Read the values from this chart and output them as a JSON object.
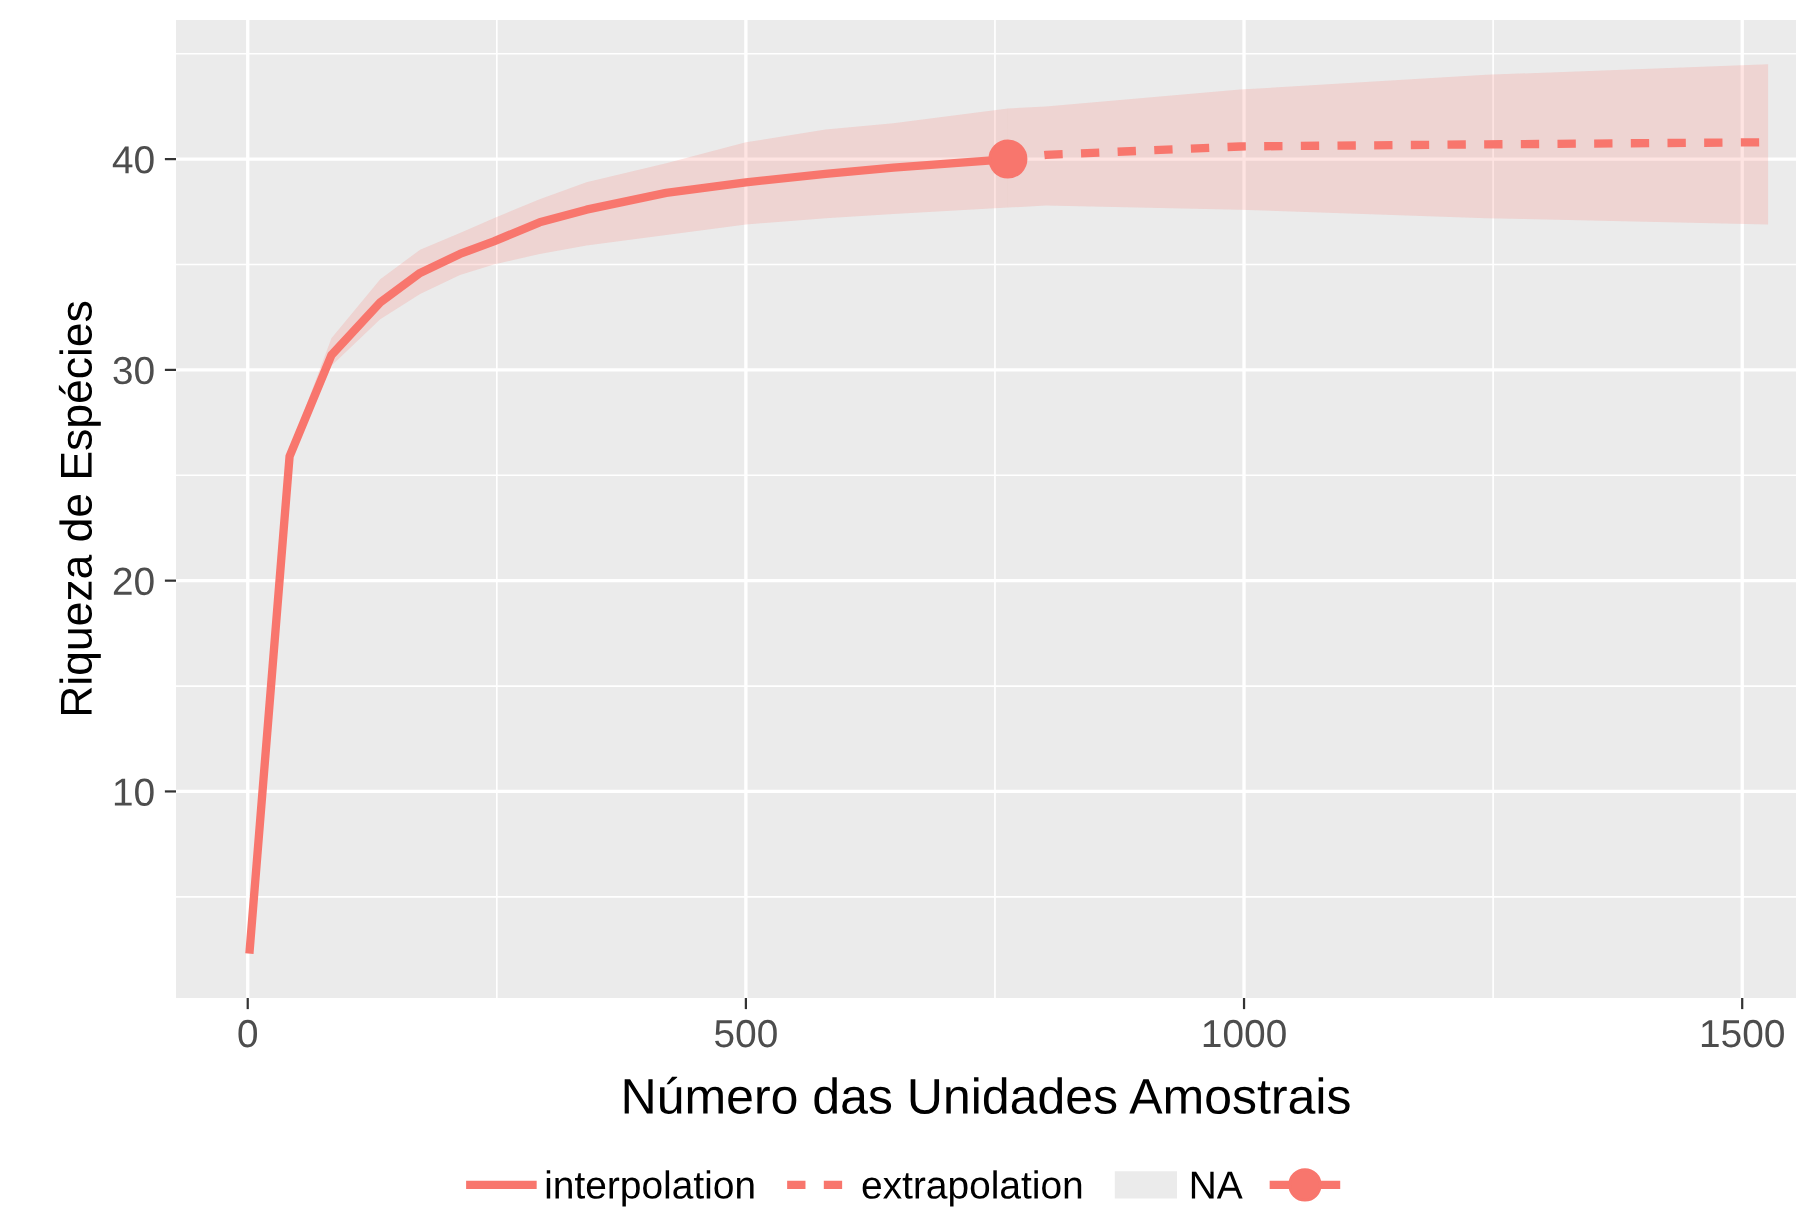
{
  "chart_data": {
    "type": "line",
    "xlabel": "Número das Unidades Amostrais",
    "ylabel": "Riqueza de Espécies",
    "xlim": [
      -72,
      1554
    ],
    "ylim": [
      0.2,
      46.6
    ],
    "xticks": [
      0,
      500,
      1000,
      1500
    ],
    "yticks": [
      10,
      20,
      30,
      40
    ],
    "grid": true,
    "legend": "bottom",
    "annotations": [
      "NA"
    ],
    "series": [
      {
        "name": "interpolation",
        "line_style": "solid",
        "color": "#f8766d",
        "x": [
          2,
          42,
          84,
          133,
          173,
          213,
          247,
          293,
          340,
          420,
          500,
          580,
          648,
          763
        ],
        "values": [
          2.5,
          25.9,
          30.7,
          33.2,
          34.6,
          35.5,
          36.1,
          37.0,
          37.6,
          38.4,
          38.9,
          39.3,
          39.6,
          40.0
        ],
        "lower": [
          2.5,
          25.6,
          30.2,
          32.4,
          33.6,
          34.5,
          35.0,
          35.5,
          35.9,
          36.4,
          36.9,
          37.2,
          37.4,
          37.7
        ],
        "upper": [
          2.5,
          26.2,
          31.5,
          34.3,
          35.7,
          36.5,
          37.2,
          38.1,
          38.9,
          39.8,
          40.8,
          41.4,
          41.7,
          42.4
        ]
      },
      {
        "name": "extrapolation",
        "line_style": "dashed",
        "color": "#f8766d",
        "x": [
          763,
          801,
          996,
          1243,
          1526
        ],
        "values": [
          40.0,
          40.2,
          40.6,
          40.7,
          40.8
        ],
        "lower": [
          37.7,
          37.8,
          37.6,
          37.2,
          36.9
        ],
        "upper": [
          42.4,
          42.5,
          43.3,
          44.0,
          44.5
        ]
      },
      {
        "type": "scatter",
        "marker": "circle",
        "color": "#f8766d",
        "x": [
          763
        ],
        "values": [
          40.0
        ]
      }
    ]
  }
}
